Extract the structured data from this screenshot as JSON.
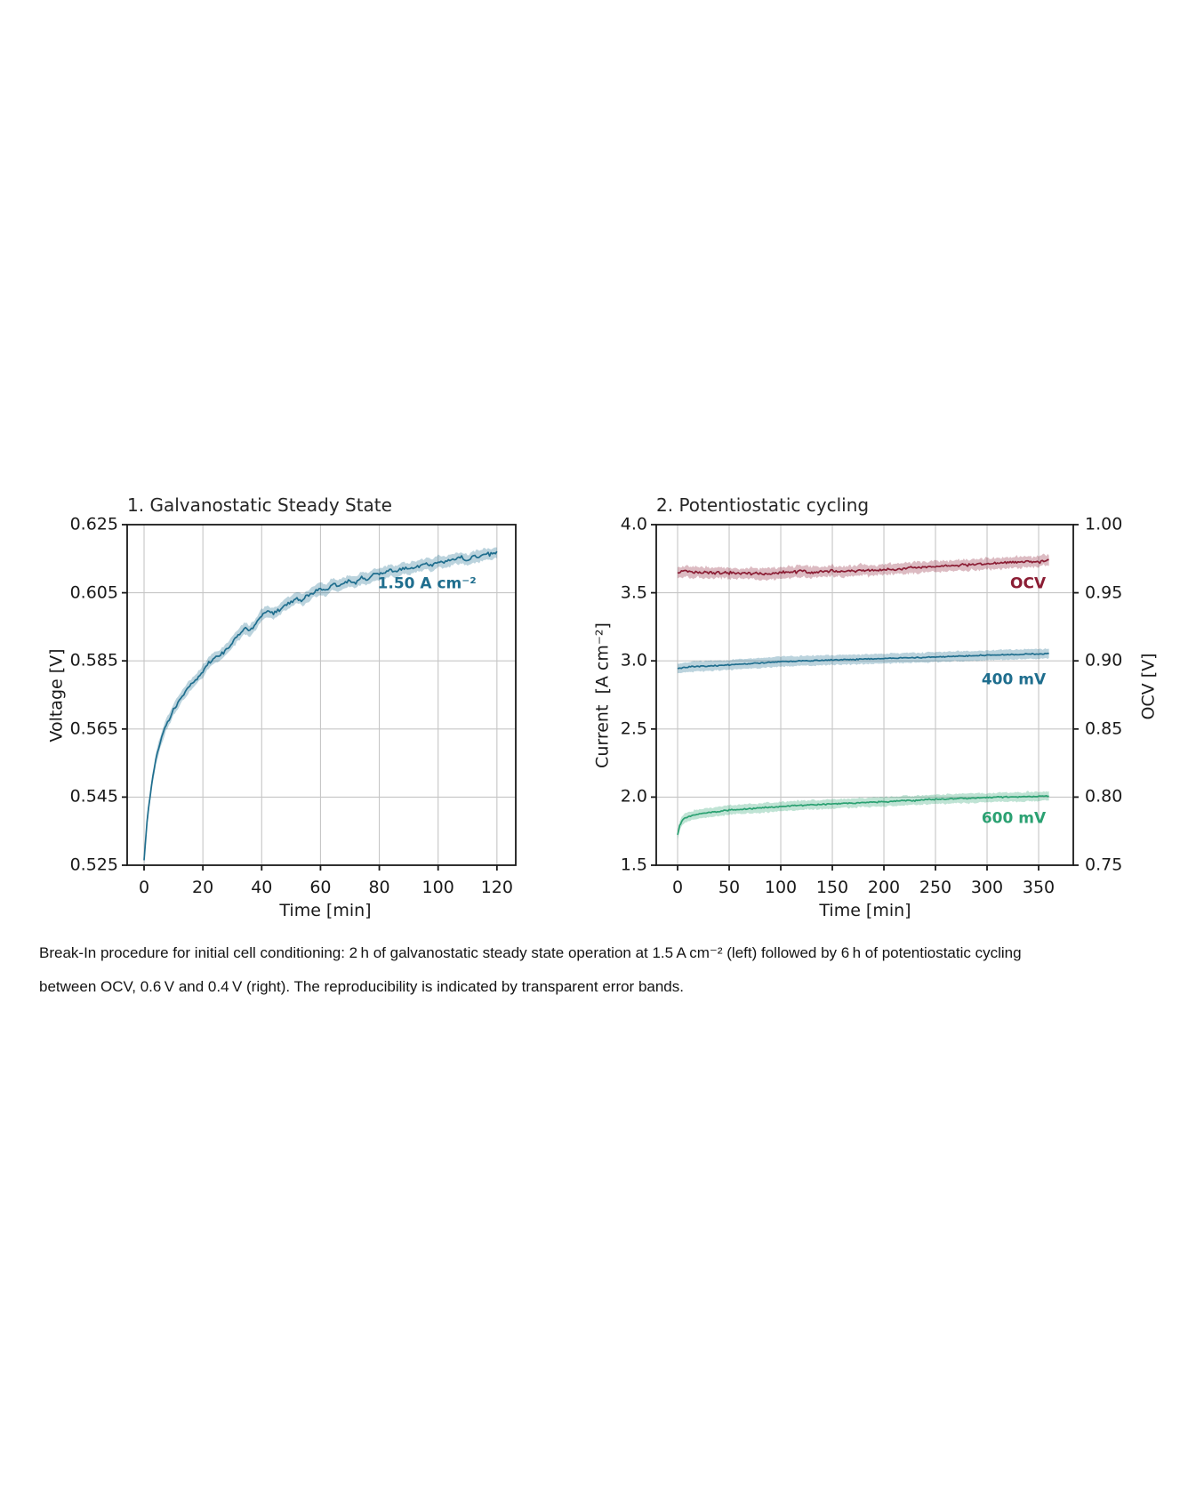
{
  "figure": {
    "caption_line1": "Break-In procedure for initial cell conditioning: 2 h of galvanostatic steady state operation at 1.5 A cm⁻² (left) followed by 6 h of potentiostatic cycling",
    "caption_line2": "between OCV, 0.6 V and 0.4 V (right). The reproducibility is indicated by transparent error bands."
  },
  "colors": {
    "teal": "#1f6e8e",
    "dark_red": "#8b1d34",
    "green": "#2ba172",
    "grid": "#c6c6c6",
    "spine": "#1a1a1a"
  },
  "chart_data": [
    {
      "type": "line",
      "title": "1. Galvanostatic Steady State",
      "xlabel": "Time [min]",
      "ylabel": "Voltage [V]",
      "xlim": [
        -5.75,
        126.4
      ],
      "ylim": [
        0.525,
        0.625
      ],
      "xticks": [
        0,
        20,
        40,
        60,
        80,
        100,
        120
      ],
      "xtick_labels": [
        "0",
        "20",
        "40",
        "60",
        "80",
        "100",
        "120"
      ],
      "yticks": [
        0.525,
        0.545,
        0.565,
        0.585,
        0.605,
        0.625
      ],
      "ytick_labels": [
        "0.525",
        "0.545",
        "0.565",
        "0.585",
        "0.605",
        "0.625"
      ],
      "grid": true,
      "legend_position": "inline-annotation",
      "series": [
        {
          "name": "1.50 A cm⁻²",
          "color": "#1f6e8e",
          "band": 0.0017,
          "jitter": 0.0006,
          "band_jitter": 0.0004,
          "label": {
            "text": "1.50 A cm⁻²",
            "x": 113,
            "y": 0.6075,
            "anchor": "end"
          },
          "x": [
            0,
            1,
            2,
            3,
            4,
            5,
            6,
            7,
            8,
            9,
            10,
            12,
            14,
            16,
            18,
            20,
            22,
            24,
            26,
            28,
            30,
            32,
            34,
            36,
            38,
            40,
            42,
            44,
            46,
            48,
            50,
            52,
            54,
            56,
            58,
            60,
            62,
            64,
            66,
            68,
            70,
            72,
            74,
            76,
            78,
            80,
            82,
            84,
            86,
            88,
            90,
            92,
            94,
            96,
            98,
            100,
            102,
            104,
            106,
            108,
            110,
            112,
            114,
            116,
            118,
            120
          ],
          "y": [
            0.5265,
            0.538,
            0.545,
            0.551,
            0.556,
            0.5595,
            0.5625,
            0.565,
            0.567,
            0.5688,
            0.5705,
            0.5735,
            0.576,
            0.578,
            0.58,
            0.582,
            0.5845,
            0.586,
            0.5868,
            0.5885,
            0.5905,
            0.5925,
            0.5945,
            0.5938,
            0.5958,
            0.5985,
            0.5995,
            0.5988,
            0.6,
            0.6015,
            0.6025,
            0.6035,
            0.6028,
            0.6042,
            0.6055,
            0.6062,
            0.6058,
            0.6075,
            0.6068,
            0.6078,
            0.6085,
            0.608,
            0.6095,
            0.609,
            0.6103,
            0.6105,
            0.611,
            0.6115,
            0.611,
            0.6123,
            0.612,
            0.6125,
            0.613,
            0.6135,
            0.613,
            0.6143,
            0.614,
            0.6145,
            0.615,
            0.6153,
            0.6145,
            0.6155,
            0.6158,
            0.6162,
            0.6163,
            0.6168
          ]
        }
      ]
    },
    {
      "type": "line",
      "title": "2. Potentiostatic cycling",
      "xlabel": "Time [min]",
      "ylabel": "Current  [A cm⁻²]",
      "ylabel_right": "OCV [V]",
      "xlim": [
        -20.7,
        383.6
      ],
      "ylim": [
        1.5,
        4.0
      ],
      "ylim_right": [
        0.75,
        1.0
      ],
      "xticks": [
        0,
        50,
        100,
        150,
        200,
        250,
        300,
        350
      ],
      "xtick_labels": [
        "0",
        "50",
        "100",
        "150",
        "200",
        "250",
        "300",
        "350"
      ],
      "yticks": [
        1.5,
        2.0,
        2.5,
        3.0,
        3.5,
        4.0
      ],
      "ytick_labels": [
        "1.5",
        "2.0",
        "2.5",
        "3.0",
        "3.5",
        "4.0"
      ],
      "yticks_right": [
        0.75,
        0.8,
        0.85,
        0.9,
        0.95,
        1.0
      ],
      "ytick_labels_right": [
        "0.75",
        "0.80",
        "0.85",
        "0.90",
        "0.95",
        "1.00"
      ],
      "grid": true,
      "legend_position": "inline-annotation",
      "series": [
        {
          "name": "OCV",
          "color": "#8b1d34",
          "band": 0.04,
          "jitter": 0.011,
          "band_jitter": 0.013,
          "label": {
            "text": "OCV",
            "x": 357,
            "y": 3.565,
            "anchor": "end"
          },
          "x": [
            0,
            10,
            20,
            30,
            40,
            50,
            60,
            70,
            80,
            90,
            100,
            110,
            120,
            130,
            140,
            150,
            160,
            170,
            180,
            190,
            200,
            210,
            220,
            230,
            240,
            250,
            260,
            270,
            280,
            290,
            300,
            310,
            320,
            330,
            340,
            350,
            360
          ],
          "y": [
            3.65,
            3.655,
            3.648,
            3.645,
            3.65,
            3.644,
            3.64,
            3.643,
            3.638,
            3.641,
            3.645,
            3.652,
            3.66,
            3.648,
            3.655,
            3.663,
            3.652,
            3.662,
            3.668,
            3.664,
            3.67,
            3.675,
            3.68,
            3.686,
            3.69,
            3.695,
            3.699,
            3.7,
            3.705,
            3.71,
            3.714,
            3.716,
            3.72,
            3.724,
            3.726,
            3.73,
            3.745
          ]
        },
        {
          "name": "400 mV",
          "color": "#1f6e8e",
          "band": 0.036,
          "jitter": 0.004,
          "band_jitter": 0.006,
          "label": {
            "text": "400 mV",
            "x": 357,
            "y": 2.855,
            "anchor": "end"
          },
          "x": [
            0,
            10,
            20,
            30,
            40,
            50,
            60,
            70,
            80,
            90,
            100,
            110,
            120,
            130,
            140,
            150,
            160,
            170,
            180,
            190,
            200,
            210,
            220,
            230,
            240,
            250,
            260,
            270,
            280,
            290,
            300,
            310,
            320,
            330,
            340,
            350,
            360
          ],
          "y": [
            2.945,
            2.955,
            2.96,
            2.962,
            2.966,
            2.97,
            2.975,
            2.98,
            2.985,
            2.99,
            2.995,
            2.996,
            3.0,
            3.001,
            3.005,
            3.006,
            3.01,
            3.01,
            3.012,
            3.015,
            3.016,
            3.02,
            3.021,
            3.024,
            3.025,
            3.029,
            3.03,
            3.034,
            3.035,
            3.039,
            3.04,
            3.044,
            3.045,
            3.046,
            3.05,
            3.05,
            3.055
          ]
        },
        {
          "name": "600 mV",
          "color": "#2ba172",
          "band": 0.034,
          "jitter": 0.005,
          "band_jitter": 0.007,
          "label": {
            "text": "600 mV",
            "x": 357,
            "y": 1.84,
            "anchor": "end"
          },
          "x": [
            0,
            2,
            4,
            6,
            8,
            10,
            15,
            20,
            25,
            30,
            40,
            50,
            60,
            70,
            80,
            90,
            100,
            110,
            120,
            130,
            140,
            150,
            160,
            170,
            180,
            190,
            200,
            210,
            220,
            230,
            240,
            250,
            260,
            270,
            280,
            290,
            300,
            310,
            320,
            330,
            340,
            350,
            360
          ],
          "y": [
            1.72,
            1.79,
            1.82,
            1.838,
            1.848,
            1.855,
            1.866,
            1.875,
            1.881,
            1.886,
            1.895,
            1.905,
            1.91,
            1.915,
            1.92,
            1.925,
            1.93,
            1.935,
            1.94,
            1.944,
            1.945,
            1.95,
            1.955,
            1.956,
            1.96,
            1.964,
            1.965,
            1.97,
            1.974,
            1.975,
            1.98,
            1.984,
            1.985,
            1.99,
            1.99,
            1.994,
            1.995,
            2.0,
            2.0,
            2.001,
            2.004,
            2.005,
            2.01
          ]
        }
      ]
    }
  ]
}
